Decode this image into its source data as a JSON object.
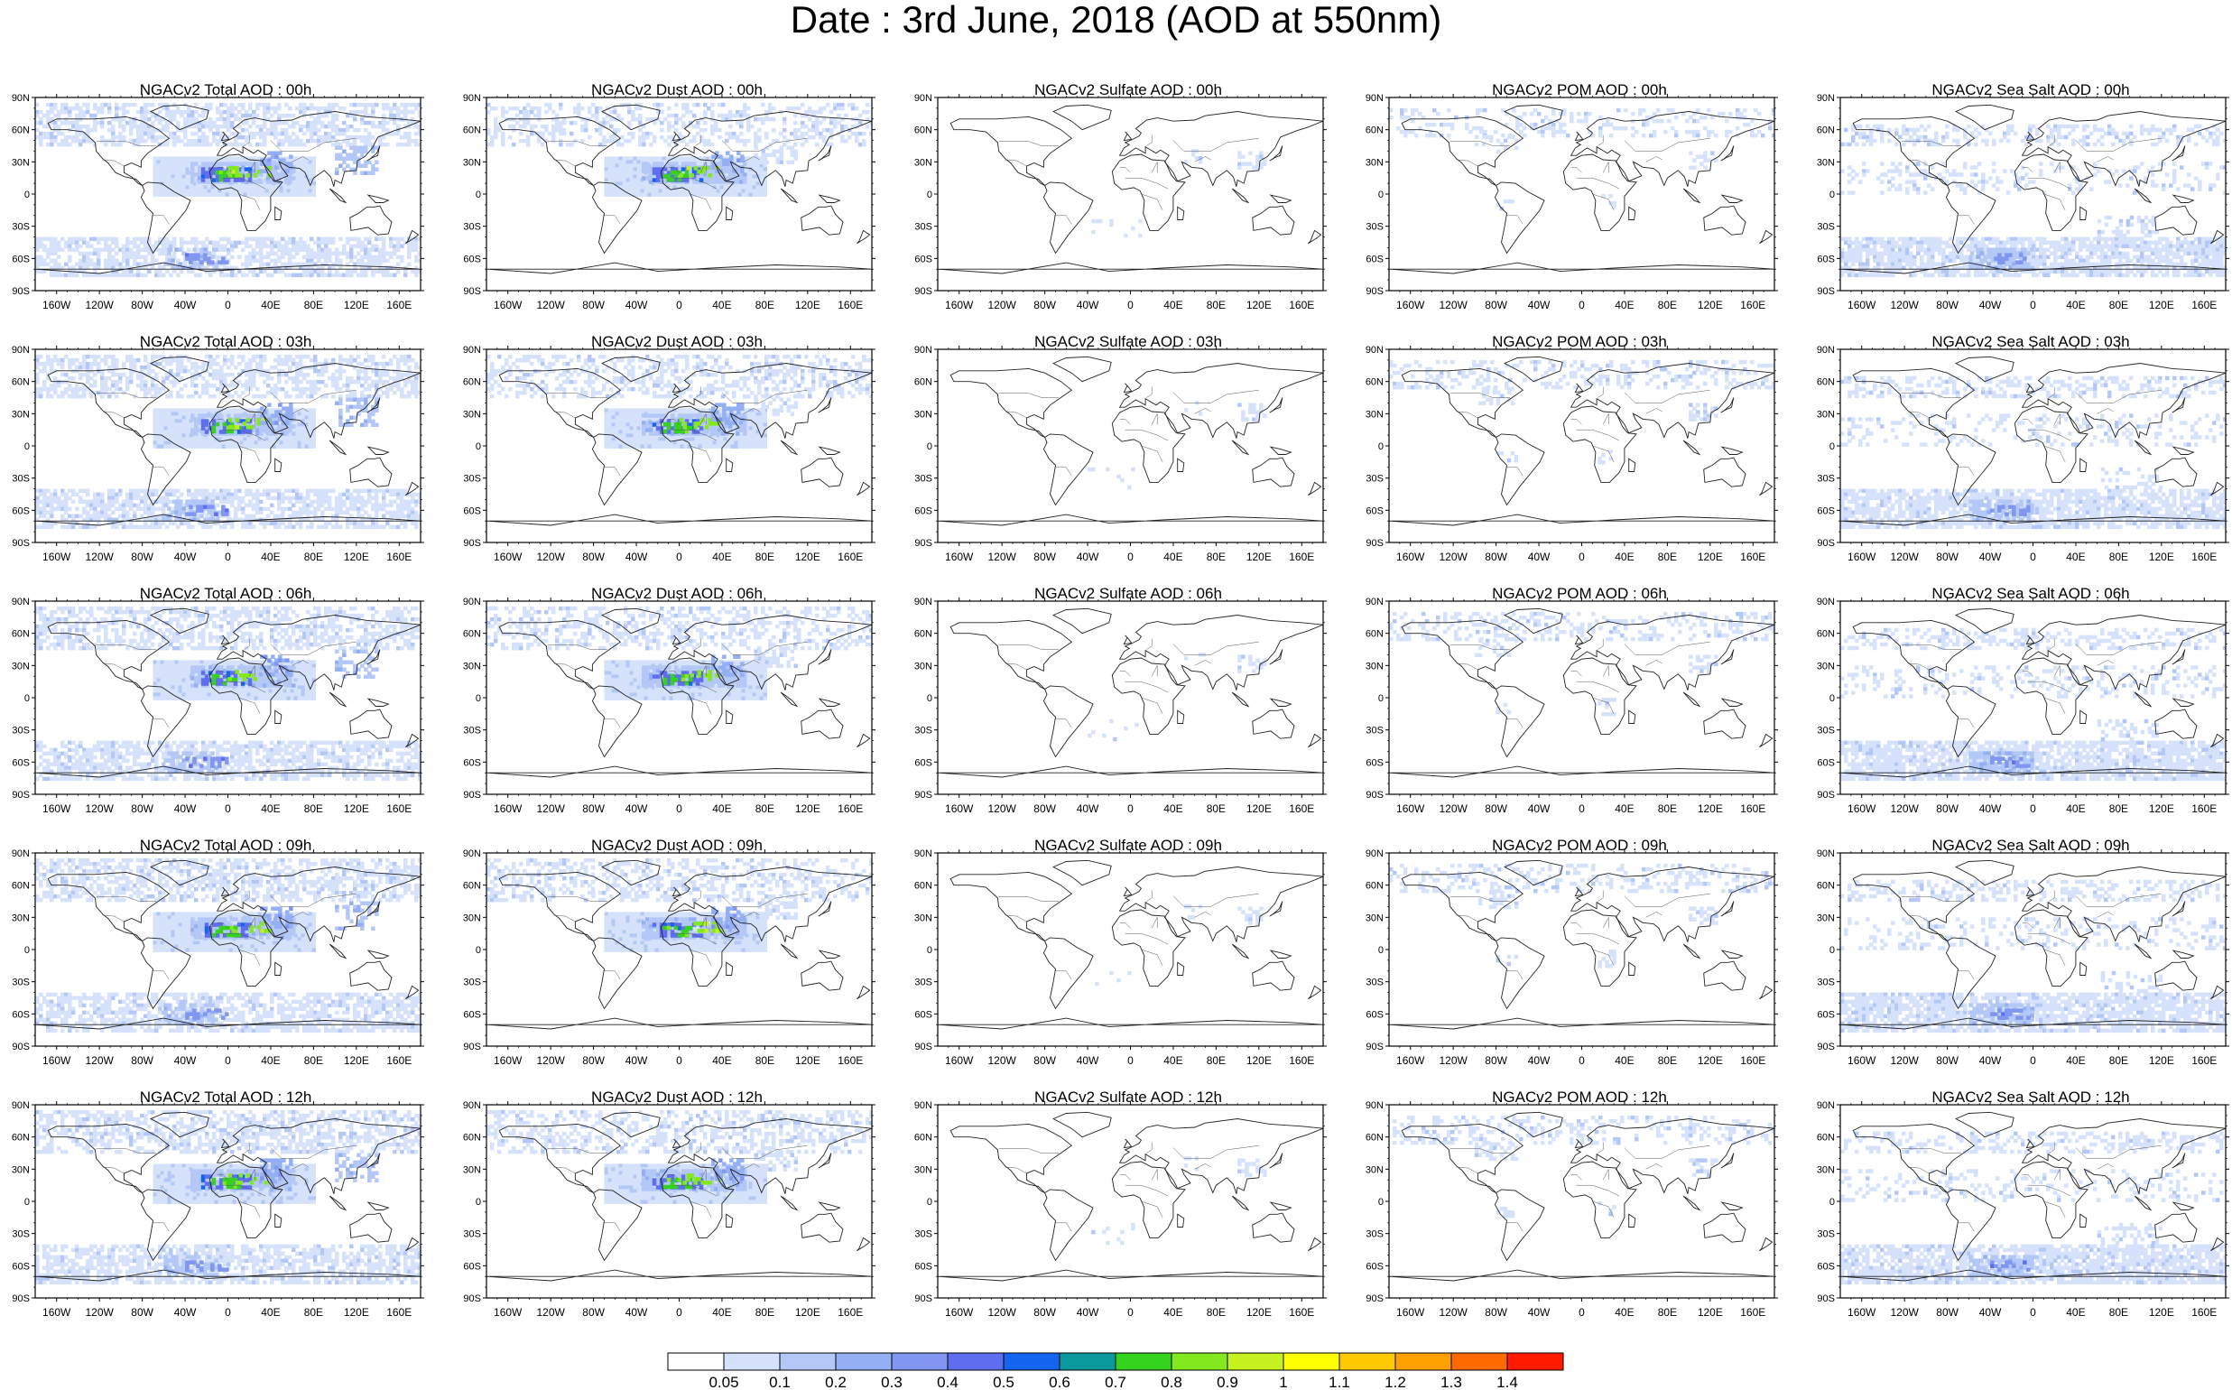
{
  "title": "Date : 3rd June, 2018 (AOD at 550nm)",
  "map_axes": {
    "lat_ticks": [
      "90N",
      "60N",
      "30N",
      "0",
      "30S",
      "60S",
      "90S"
    ],
    "lon_ticks": [
      "160W",
      "120W",
      "80W",
      "40W",
      "0",
      "40E",
      "80E",
      "120E",
      "160E"
    ]
  },
  "panel_rows": [
    [
      "NGACv2 Total AOD : 00h",
      "NGACv2 Dust AOD : 00h",
      "NGACv2 Sulfate AOD : 00h",
      "NGACv2 POM AOD : 00h",
      "NGACv2 Sea Salt AOD : 00h"
    ],
    [
      "NGACv2 Total AOD : 03h",
      "NGACv2 Dust AOD : 03h",
      "NGACv2 Sulfate AOD : 03h",
      "NGACv2 POM AOD : 03h",
      "NGACv2 Sea Salt AOD : 03h"
    ],
    [
      "NGACv2 Total AOD : 06h",
      "NGACv2 Dust AOD : 06h",
      "NGACv2 Sulfate AOD : 06h",
      "NGACv2 POM AOD : 06h",
      "NGACv2 Sea Salt AOD : 06h"
    ],
    [
      "NGACv2 Total AOD : 09h",
      "NGACv2 Dust AOD : 09h",
      "NGACv2 Sulfate AOD : 09h",
      "NGACv2 POM AOD : 09h",
      "NGACv2 Sea Salt  AOD : 09h"
    ],
    [
      "NGACv2 Total AOD  : 12h",
      "NGACv2 Dust AOD : 12h",
      "NGACv2 Sulfate AOD : 12h",
      "NGACv2 POM  AOD : 12h",
      "NGACv2 Sea Salt AOD : 12h"
    ]
  ],
  "colorbar": {
    "levels": [
      "0.05",
      "0.1",
      "0.2",
      "0.3",
      "0.4",
      "0.5",
      "0.6",
      "0.7",
      "0.8",
      "0.9",
      "1",
      "1.1",
      "1.2",
      "1.3",
      "1.4"
    ],
    "colors": [
      "#ffffff",
      "#d6e2fb",
      "#b4c8f7",
      "#95aff4",
      "#8096f1",
      "#5f6ef0",
      "#1564f0",
      "#0a9a9e",
      "#35d21e",
      "#84e81e",
      "#c6f01e",
      "#ffff00",
      "#ffcb00",
      "#ffa000",
      "#ff6a00",
      "#ff1a00"
    ]
  }
}
